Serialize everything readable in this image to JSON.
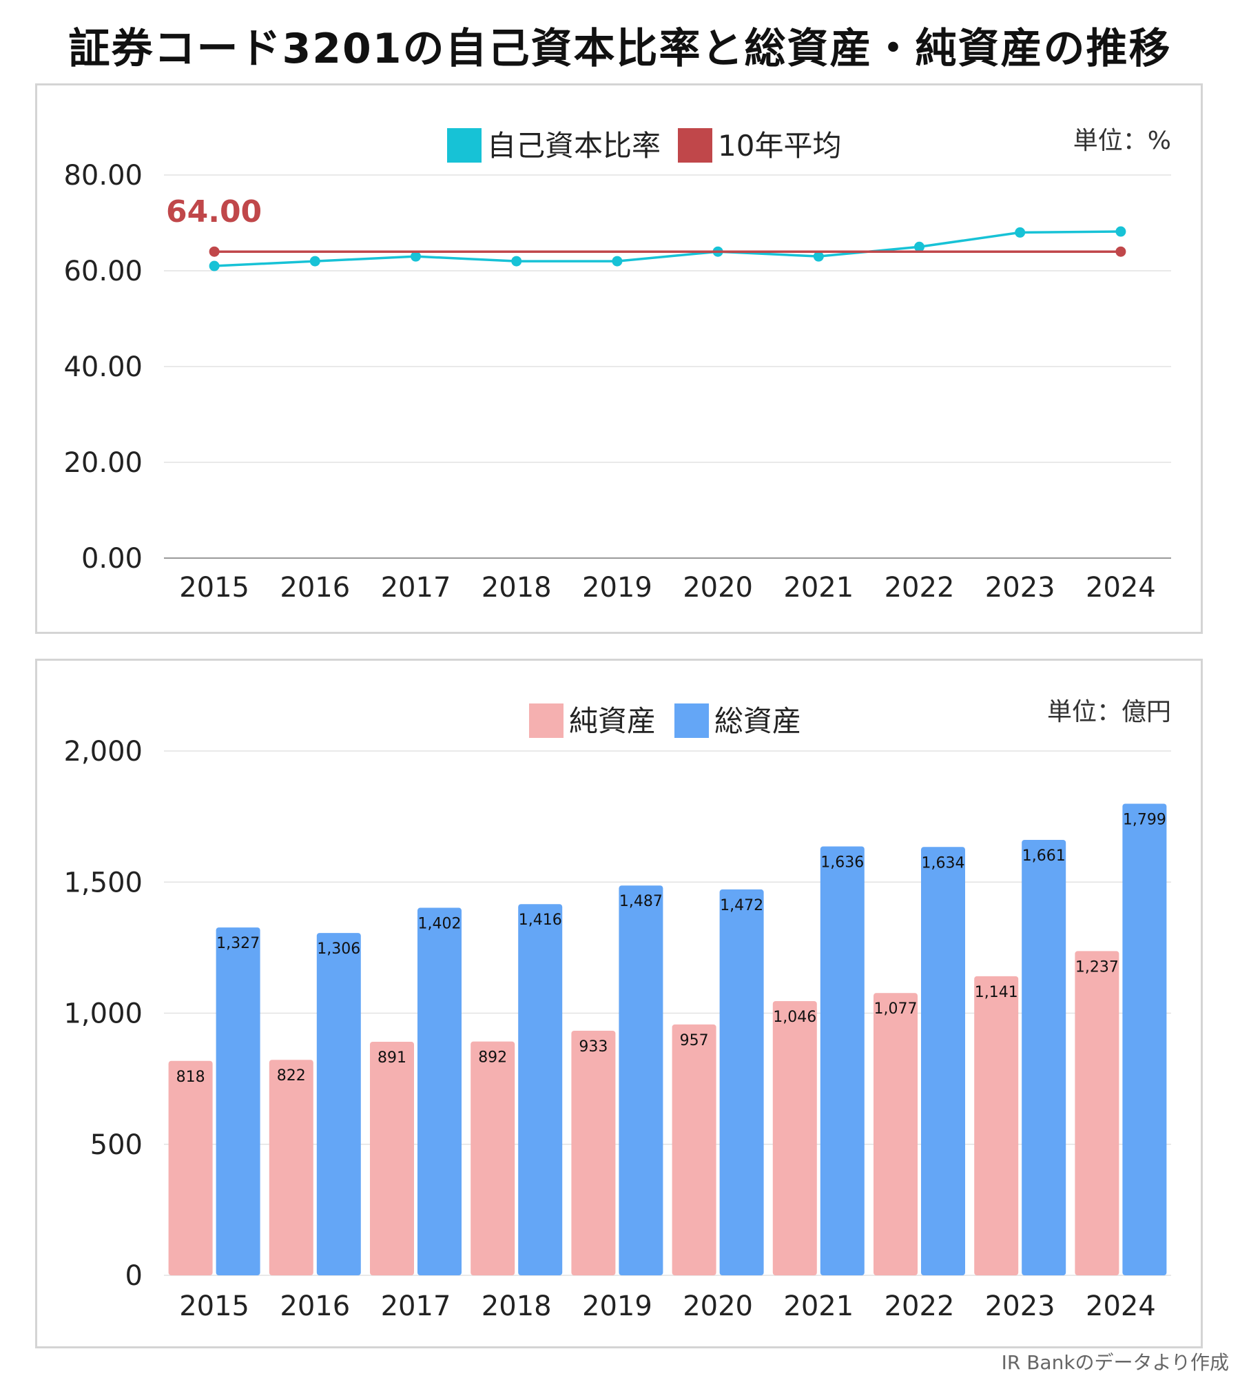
{
  "title": "証券コード3201の自己資本比率と総資産・純資産の推移",
  "source": "IR Bankのデータより作成",
  "chart_data": [
    {
      "type": "line",
      "categories": [
        "2015",
        "2016",
        "2017",
        "2018",
        "2019",
        "2020",
        "2021",
        "2022",
        "2023",
        "2024"
      ],
      "series": [
        {
          "name": "自己資本比率",
          "values": [
            61,
            62,
            63,
            62,
            62,
            64,
            63,
            65,
            68,
            68.2
          ]
        },
        {
          "name": "10年平均",
          "values": [
            64,
            64,
            64,
            64,
            64,
            64,
            64,
            64,
            64,
            64
          ]
        }
      ],
      "average_label": "64.00",
      "unit": "単位：%",
      "ylim": [
        0,
        80
      ],
      "yticks": [
        0,
        20,
        40,
        60,
        80
      ],
      "ytick_labels": [
        "0.00",
        "20.00",
        "40.00",
        "60.00",
        "80.00"
      ],
      "grid": true,
      "legend": "top-center",
      "colors": {
        "ratio": "#17c2d6",
        "average": "#c0474a",
        "grid": "#e2e2e2",
        "axis": "#9a9a9a"
      }
    },
    {
      "type": "bar",
      "categories": [
        "2015",
        "2016",
        "2017",
        "2018",
        "2019",
        "2020",
        "2021",
        "2022",
        "2023",
        "2024"
      ],
      "series": [
        {
          "name": "純資産",
          "values": [
            818,
            822,
            891,
            892,
            933,
            957,
            1046,
            1077,
            1141,
            1237
          ],
          "labels": [
            "818",
            "822",
            "891",
            "892",
            "933",
            "957",
            "1,046",
            "1,077",
            "1,141",
            "1,237"
          ]
        },
        {
          "name": "総資産",
          "values": [
            1327,
            1306,
            1402,
            1416,
            1487,
            1472,
            1636,
            1634,
            1661,
            1799
          ],
          "labels": [
            "1,327",
            "1,306",
            "1,402",
            "1,416",
            "1,487",
            "1,472",
            "1,636",
            "1,634",
            "1,661",
            "1,799"
          ]
        }
      ],
      "unit": "単位：億円",
      "ylim": [
        0,
        2000
      ],
      "yticks": [
        0,
        500,
        1000,
        1500,
        2000
      ],
      "ytick_labels": [
        "0",
        "500",
        "1,000",
        "1,500",
        "2,000"
      ],
      "grid": true,
      "legend": "top-center",
      "colors": {
        "net": "#f5b0b0",
        "total": "#64a6f6",
        "grid": "#e2e2e2"
      }
    }
  ]
}
